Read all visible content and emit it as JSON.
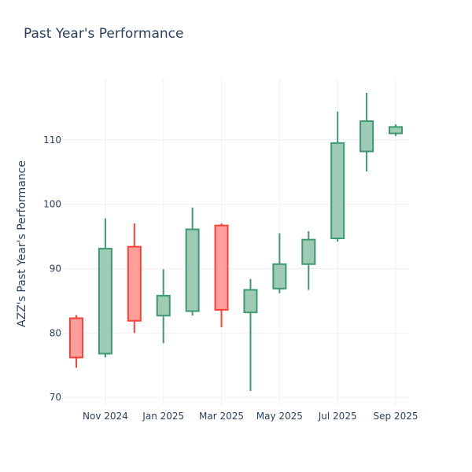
{
  "chart_data": {
    "type": "candlestick",
    "title": "Past Year's Performance",
    "xlabel": "",
    "ylabel": "AZZ's Past Year's Performance",
    "ylim": [
      68.8,
      119.5
    ],
    "y_ticks": [
      70,
      80,
      90,
      100,
      110
    ],
    "x_ticks": [
      "Nov 2024",
      "Jan 2025",
      "Mar 2025",
      "May 2025",
      "Jul 2025",
      "Sep 2025"
    ],
    "increasing_color": "#3D9970",
    "increasing_fill": "#9ECBB5",
    "decreasing_color": "#FF4136",
    "decreasing_fill": "#FF9F9B",
    "candles": [
      {
        "open": 82.3,
        "high": 82.8,
        "low": 74.6,
        "close": 76.2
      },
      {
        "open": 76.8,
        "high": 97.8,
        "low": 76.2,
        "close": 93.1
      },
      {
        "open": 93.4,
        "high": 97.0,
        "low": 80.0,
        "close": 81.9
      },
      {
        "open": 82.7,
        "high": 89.9,
        "low": 78.4,
        "close": 85.8
      },
      {
        "open": 83.4,
        "high": 99.5,
        "low": 82.7,
        "close": 96.1
      },
      {
        "open": 96.7,
        "high": 97.0,
        "low": 80.9,
        "close": 83.6
      },
      {
        "open": 83.2,
        "high": 88.4,
        "low": 71.0,
        "close": 86.7
      },
      {
        "open": 86.9,
        "high": 95.5,
        "low": 86.2,
        "close": 90.7
      },
      {
        "open": 90.7,
        "high": 95.8,
        "low": 86.7,
        "close": 94.5
      },
      {
        "open": 94.7,
        "high": 114.4,
        "low": 94.2,
        "close": 109.5
      },
      {
        "open": 108.2,
        "high": 117.3,
        "low": 105.1,
        "close": 112.9
      },
      {
        "open": 111.0,
        "high": 112.4,
        "low": 110.6,
        "close": 112.0
      }
    ]
  }
}
